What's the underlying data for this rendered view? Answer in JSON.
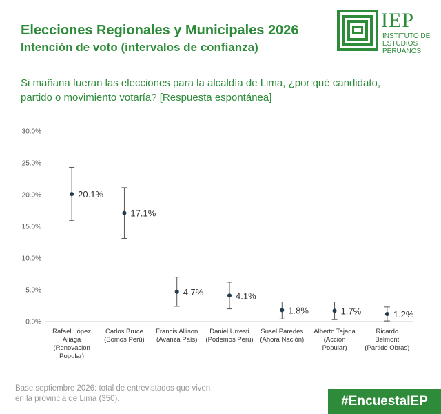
{
  "header": {
    "title": "Elecciones Regionales y Municipales 2026",
    "subtitle": "Intención de voto (intervalos de confianza)",
    "question": "Si mañana fueran las elecciones para la alcaldía de Lima, ¿por qué candidato, partido o movimiento votaría? [Respuesta espontánea]"
  },
  "logo": {
    "brand": "IEP",
    "lines": [
      "INSTITUTO DE",
      "ESTUDIOS",
      "PERUANOS"
    ],
    "icon": "iep-logo-icon",
    "color": "#2e8b3a"
  },
  "chart_data": {
    "type": "scatter",
    "ylim": [
      0,
      30
    ],
    "yticks": [
      "30.0%",
      "25.0%",
      "20.0%",
      "15.0%",
      "10.0%",
      "5.0%",
      "0.0%"
    ],
    "ytick_values": [
      30,
      25,
      20,
      15,
      10,
      5,
      0
    ],
    "categories": [
      [
        "Rafael López",
        "Aliaga",
        "(Renovación",
        "Popular)"
      ],
      [
        "Carlos Bruce",
        "(Somos Perú)"
      ],
      [
        "Francis Allison",
        "(Avanza País)"
      ],
      [
        "Daniel Urresti",
        "(Podemos Perú)"
      ],
      [
        "Susel Paredes",
        "(Ahora Nación)"
      ],
      [
        "Alberto Tejada",
        "(Acción",
        "Popular)"
      ],
      [
        "Ricardo",
        "Belmont",
        "(Partido Obras)"
      ]
    ],
    "values": [
      20.1,
      17.1,
      4.7,
      4.1,
      1.8,
      1.7,
      1.2
    ],
    "labels": [
      "20.1%",
      "17.1%",
      "4.7%",
      "4.1%",
      "1.8%",
      "1.7%",
      "1.2%"
    ],
    "lower": [
      15.9,
      13.1,
      2.4,
      2.0,
      0.4,
      0.3,
      0.1
    ],
    "upper": [
      24.3,
      21.1,
      7.0,
      6.2,
      3.1,
      3.1,
      2.3
    ],
    "marker_color": "#1f3b4d",
    "error_color": "#555555"
  },
  "footer": {
    "note_lines": [
      "Base septiembre 2026:  total de entrevistados que viven",
      "en la provincia de Lima (350)."
    ],
    "hashtag": "#EncuestaIEP"
  }
}
